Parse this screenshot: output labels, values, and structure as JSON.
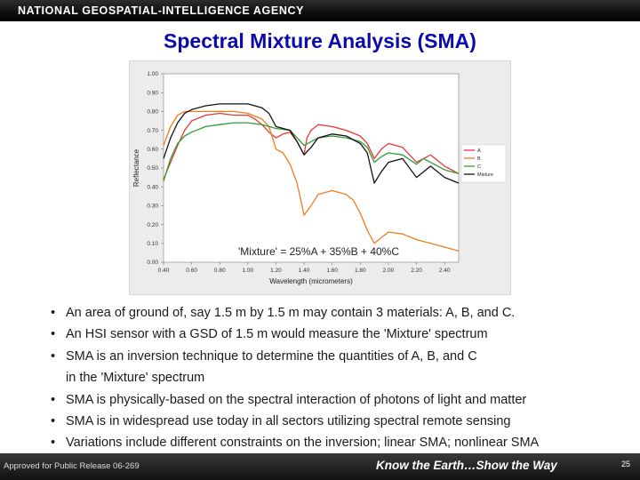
{
  "header": {
    "agency": "NATIONAL GEOSPATIAL-INTELLIGENCE AGENCY",
    "title": "Spectral Mixture Analysis (SMA)"
  },
  "chart_data": {
    "type": "line",
    "xlabel": "Wavelength (micrometers)",
    "ylabel": "Reflectance",
    "xlim": [
      0.4,
      2.5
    ],
    "ylim": [
      0.0,
      1.0
    ],
    "xticks": [
      "0.40",
      "0.60",
      "0.80",
      "1.00",
      "1.20",
      "1.40",
      "1.60",
      "1.80",
      "2.00",
      "2.20",
      "2.40"
    ],
    "yticks": [
      "0.00",
      "0.10",
      "0.20",
      "0.30",
      "0.40",
      "0.50",
      "0.60",
      "0.70",
      "0.80",
      "0.90",
      "1.00"
    ],
    "grid": false,
    "legend_position": "right",
    "annotation": "'Mixture' = 25%A + 35%B + 40%C",
    "series": [
      {
        "name": "A",
        "color": "#e53935",
        "points": [
          [
            0.4,
            0.44
          ],
          [
            0.45,
            0.53
          ],
          [
            0.5,
            0.62
          ],
          [
            0.55,
            0.7
          ],
          [
            0.6,
            0.75
          ],
          [
            0.7,
            0.78
          ],
          [
            0.8,
            0.79
          ],
          [
            0.9,
            0.78
          ],
          [
            1.0,
            0.78
          ],
          [
            1.05,
            0.76
          ],
          [
            1.1,
            0.73
          ],
          [
            1.15,
            0.69
          ],
          [
            1.2,
            0.66
          ],
          [
            1.25,
            0.68
          ],
          [
            1.3,
            0.69
          ],
          [
            1.35,
            0.64
          ],
          [
            1.4,
            0.57
          ],
          [
            1.42,
            0.66
          ],
          [
            1.45,
            0.7
          ],
          [
            1.5,
            0.73
          ],
          [
            1.6,
            0.72
          ],
          [
            1.7,
            0.7
          ],
          [
            1.8,
            0.67
          ],
          [
            1.85,
            0.63
          ],
          [
            1.9,
            0.55
          ],
          [
            1.95,
            0.6
          ],
          [
            2.0,
            0.63
          ],
          [
            2.1,
            0.61
          ],
          [
            2.2,
            0.53
          ],
          [
            2.25,
            0.55
          ],
          [
            2.3,
            0.57
          ],
          [
            2.4,
            0.51
          ],
          [
            2.5,
            0.47
          ]
        ]
      },
      {
        "name": "B",
        "color": "#f07c1e",
        "points": [
          [
            0.4,
            0.62
          ],
          [
            0.45,
            0.72
          ],
          [
            0.5,
            0.78
          ],
          [
            0.55,
            0.8
          ],
          [
            0.6,
            0.8
          ],
          [
            0.7,
            0.8
          ],
          [
            0.8,
            0.8
          ],
          [
            0.9,
            0.8
          ],
          [
            1.0,
            0.79
          ],
          [
            1.1,
            0.76
          ],
          [
            1.15,
            0.72
          ],
          [
            1.2,
            0.6
          ],
          [
            1.25,
            0.58
          ],
          [
            1.3,
            0.52
          ],
          [
            1.35,
            0.42
          ],
          [
            1.4,
            0.25
          ],
          [
            1.45,
            0.3
          ],
          [
            1.5,
            0.36
          ],
          [
            1.6,
            0.38
          ],
          [
            1.7,
            0.36
          ],
          [
            1.75,
            0.33
          ],
          [
            1.8,
            0.26
          ],
          [
            1.85,
            0.17
          ],
          [
            1.9,
            0.1
          ],
          [
            1.95,
            0.13
          ],
          [
            2.0,
            0.16
          ],
          [
            2.1,
            0.15
          ],
          [
            2.2,
            0.12
          ],
          [
            2.3,
            0.1
          ],
          [
            2.4,
            0.08
          ],
          [
            2.5,
            0.06
          ]
        ]
      },
      {
        "name": "C",
        "color": "#2e9e3a",
        "points": [
          [
            0.4,
            0.43
          ],
          [
            0.45,
            0.55
          ],
          [
            0.5,
            0.63
          ],
          [
            0.55,
            0.67
          ],
          [
            0.6,
            0.69
          ],
          [
            0.7,
            0.72
          ],
          [
            0.8,
            0.73
          ],
          [
            0.9,
            0.74
          ],
          [
            1.0,
            0.74
          ],
          [
            1.1,
            0.73
          ],
          [
            1.2,
            0.71
          ],
          [
            1.3,
            0.7
          ],
          [
            1.35,
            0.66
          ],
          [
            1.4,
            0.62
          ],
          [
            1.45,
            0.64
          ],
          [
            1.5,
            0.66
          ],
          [
            1.6,
            0.67
          ],
          [
            1.7,
            0.66
          ],
          [
            1.8,
            0.64
          ],
          [
            1.85,
            0.61
          ],
          [
            1.9,
            0.53
          ],
          [
            1.95,
            0.56
          ],
          [
            2.0,
            0.58
          ],
          [
            2.1,
            0.57
          ],
          [
            2.2,
            0.52
          ],
          [
            2.25,
            0.55
          ],
          [
            2.3,
            0.53
          ],
          [
            2.4,
            0.49
          ],
          [
            2.5,
            0.47
          ]
        ]
      },
      {
        "name": "Mixture",
        "color": "#111111",
        "points": [
          [
            0.4,
            0.55
          ],
          [
            0.45,
            0.66
          ],
          [
            0.5,
            0.74
          ],
          [
            0.55,
            0.79
          ],
          [
            0.6,
            0.81
          ],
          [
            0.7,
            0.83
          ],
          [
            0.8,
            0.84
          ],
          [
            0.9,
            0.84
          ],
          [
            1.0,
            0.84
          ],
          [
            1.1,
            0.82
          ],
          [
            1.15,
            0.79
          ],
          [
            1.2,
            0.72
          ],
          [
            1.25,
            0.71
          ],
          [
            1.3,
            0.7
          ],
          [
            1.35,
            0.64
          ],
          [
            1.4,
            0.57
          ],
          [
            1.45,
            0.61
          ],
          [
            1.5,
            0.66
          ],
          [
            1.6,
            0.68
          ],
          [
            1.7,
            0.67
          ],
          [
            1.8,
            0.63
          ],
          [
            1.85,
            0.58
          ],
          [
            1.9,
            0.42
          ],
          [
            1.95,
            0.48
          ],
          [
            2.0,
            0.53
          ],
          [
            2.1,
            0.55
          ],
          [
            2.2,
            0.45
          ],
          [
            2.25,
            0.48
          ],
          [
            2.3,
            0.51
          ],
          [
            2.4,
            0.45
          ],
          [
            2.5,
            0.42
          ]
        ]
      }
    ]
  },
  "bullets": [
    {
      "lines": [
        "An area of ground of, say 1.5 m by 1.5 m may contain 3 materials: A, B, and C."
      ]
    },
    {
      "lines": [
        "An HSI sensor with a GSD of 1.5 m would measure the 'Mixture' spectrum"
      ]
    },
    {
      "lines": [
        "SMA is an inversion technique to determine the quantities of A, B, and C",
        "in the 'Mixture' spectrum"
      ]
    },
    {
      "lines": [
        "SMA is physically-based on the spectral interaction of photons of light and matter"
      ]
    },
    {
      "lines": [
        "SMA is in widespread use today in all sectors utilizing spectral remote sensing"
      ]
    },
    {
      "lines": [
        "Variations include different constraints on the inversion; linear SMA; nonlinear SMA"
      ]
    }
  ],
  "footer": {
    "release": "Approved for Public Release 06-269",
    "tagline": "Know the Earth…Show the Way",
    "page": "25"
  }
}
